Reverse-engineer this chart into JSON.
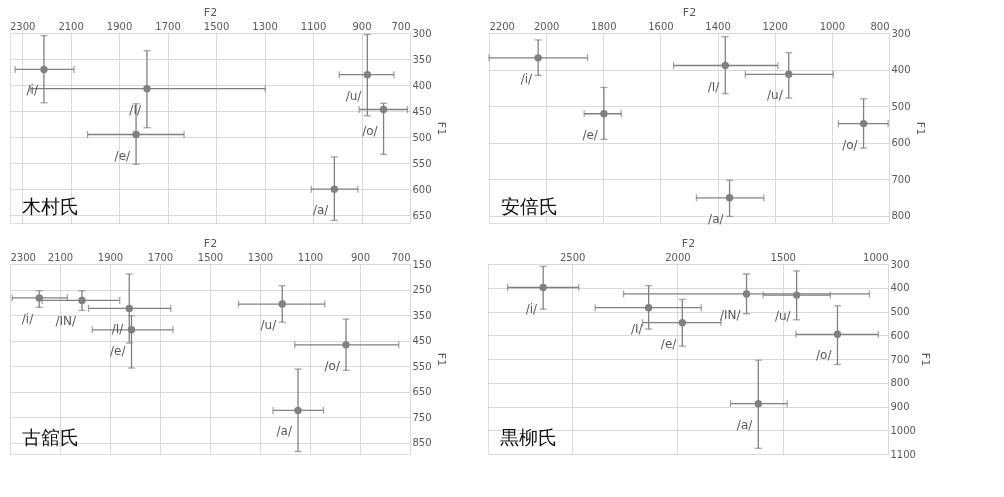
{
  "chart_data": [
    {
      "type": "scatter",
      "title": "木村氏",
      "xlabel": "F2",
      "ylabel": "F1",
      "xlim": [
        2350,
        700
      ],
      "ylim": [
        665,
        300
      ],
      "xticks": [
        2300,
        2100,
        1900,
        1700,
        1500,
        1300,
        1100,
        900,
        700
      ],
      "yticks": [
        300,
        350,
        400,
        450,
        500,
        550,
        600,
        650
      ],
      "grid": true,
      "legend": false,
      "marker": "circle",
      "series": [
        {
          "color": "#808080",
          "x": [
            2210,
            1785,
            1830,
            876,
            809,
            1012
          ],
          "values": [
            370,
            407,
            495,
            380,
            447,
            600
          ],
          "xerrors": [
            [
              2086,
              2329
            ],
            [
              1297,
              2267
            ],
            [
              1632,
              2030
            ],
            [
              766,
              992
            ],
            [
              710,
              910
            ],
            [
              915,
              1107
            ]
          ],
          "errors": [
            [
              305,
              434
            ],
            [
              334,
              482
            ],
            [
              436,
              552
            ],
            [
              303,
              459
            ],
            [
              435,
              533
            ],
            [
              538,
              660
            ]
          ]
        }
      ],
      "annotations": [
        {
          "text": "/i/",
          "x": 2210,
          "y": 370
        },
        {
          "text": "/I/",
          "x": 1785,
          "y": 407
        },
        {
          "text": "/e/",
          "x": 1830,
          "y": 495
        },
        {
          "text": "/u/",
          "x": 876,
          "y": 380
        },
        {
          "text": "/o/",
          "x": 809,
          "y": 447
        },
        {
          "text": "/a/",
          "x": 1012,
          "y": 600
        }
      ]
    },
    {
      "type": "scatter",
      "title": "安倍氏",
      "xlabel": "F2",
      "ylabel": "F1",
      "xlim": [
        2200,
        800
      ],
      "ylim": [
        820,
        300
      ],
      "xticks": [
        2200,
        2000,
        1800,
        1600,
        1400,
        1200,
        1000,
        800
      ],
      "yticks": [
        300,
        400,
        500,
        600,
        700,
        800
      ],
      "grid": true,
      "legend": false,
      "marker": "circle",
      "series": [
        {
          "color": "#808080",
          "x": [
            2028,
            1373,
            1151,
            1798,
            889,
            1358
          ],
          "values": [
            368,
            389,
            413,
            521,
            548,
            751
          ],
          "xerrors": [
            [
              1855,
              2200
            ],
            [
              1189,
              1554
            ],
            [
              995,
              1303
            ],
            [
              1737,
              1867
            ],
            [
              803,
              977
            ],
            [
              1238,
              1474
            ]
          ],
          "errors": [
            [
              319,
              416
            ],
            [
              310,
              466
            ],
            [
              354,
              478
            ],
            [
              449,
              591
            ],
            [
              480,
              615
            ],
            [
              703,
              802
            ]
          ]
        }
      ],
      "annotations": [
        {
          "text": "/i/",
          "x": 2028,
          "y": 368
        },
        {
          "text": "/I/",
          "x": 1373,
          "y": 389
        },
        {
          "text": "/u/",
          "x": 1151,
          "y": 413
        },
        {
          "text": "/e/",
          "x": 1798,
          "y": 521
        },
        {
          "text": "/o/",
          "x": 889,
          "y": 548
        },
        {
          "text": "/a/",
          "x": 1358,
          "y": 751
        }
      ]
    },
    {
      "type": "scatter",
      "title": "古舘氏",
      "xlabel": "F2",
      "ylabel": "F1",
      "xlim": [
        2300,
        700
      ],
      "ylim": [
        895,
        150
      ],
      "xticks": [
        2300,
        2100,
        1900,
        1700,
        1500,
        1300,
        1100,
        900,
        700
      ],
      "yticks": [
        150,
        250,
        350,
        450,
        550,
        650,
        750,
        850
      ],
      "grid": true,
      "legend": false,
      "marker": "circle",
      "series": [
        {
          "color": "#808080",
          "x": [
            2183,
            2012,
            1823,
            1814,
            1211,
            956,
            1148
          ],
          "values": [
            283,
            293,
            324,
            408,
            307,
            467,
            724
          ],
          "xerrors": [
            [
              2070,
              2291
            ],
            [
              1861,
              2171
            ],
            [
              1657,
              1986
            ],
            [
              1648,
              1971
            ],
            [
              1041,
              1386
            ],
            [
              745,
              1161
            ],
            [
              1046,
              1248
            ]
          ],
          "errors": [
            [
              255,
              320
            ],
            [
              255,
              332
            ],
            [
              189,
              460
            ],
            [
              353,
              558
            ],
            [
              235,
              378
            ],
            [
              366,
              567
            ],
            [
              562,
              885
            ]
          ]
        }
      ],
      "annotations": [
        {
          "text": "/i/",
          "x": 2183,
          "y": 283
        },
        {
          "text": "/IN/",
          "x": 2012,
          "y": 293
        },
        {
          "text": "/I/",
          "x": 1823,
          "y": 324
        },
        {
          "text": "/e/",
          "x": 1814,
          "y": 408
        },
        {
          "text": "/u/",
          "x": 1211,
          "y": 307
        },
        {
          "text": "/o/",
          "x": 956,
          "y": 467
        },
        {
          "text": "/a/",
          "x": 1148,
          "y": 724
        }
      ]
    },
    {
      "type": "scatter",
      "title": "黒柳氏",
      "xlabel": "F2",
      "ylabel": "F1",
      "xlim": [
        2900,
        1000
      ],
      "ylim": [
        1100,
        300
      ],
      "xticks": [
        2500,
        2000,
        1500,
        1000
      ],
      "yticks": [
        300,
        400,
        500,
        600,
        700,
        800,
        900,
        1000,
        1100
      ],
      "grid": true,
      "legend": false,
      "marker": "circle",
      "series": [
        {
          "color": "#808080",
          "x": [
            2638,
            2137,
            1977,
            1672,
            1434,
            1240,
            1616
          ],
          "values": [
            399,
            484,
            547,
            426,
            431,
            596,
            888
          ],
          "xerrors": [
            [
              2469,
              2807
            ],
            [
              1887,
              2391
            ],
            [
              1793,
              2166
            ],
            [
              1088,
              2256
            ],
            [
              1274,
              1593
            ],
            [
              1046,
              1437
            ],
            [
              1479,
              1748
            ]
          ],
          "errors": [
            [
              310,
              490
            ],
            [
              391,
              574
            ],
            [
              449,
              646
            ],
            [
              342,
              509
            ],
            [
              329,
              535
            ],
            [
              476,
              723
            ],
            [
              705,
              1076
            ]
          ]
        }
      ],
      "annotations": [
        {
          "text": "/i/",
          "x": 2638,
          "y": 399
        },
        {
          "text": "/I/",
          "x": 2137,
          "y": 484
        },
        {
          "text": "/e/",
          "x": 1977,
          "y": 547
        },
        {
          "text": "/IN/",
          "x": 1672,
          "y": 426
        },
        {
          "text": "/u/",
          "x": 1434,
          "y": 431
        },
        {
          "text": "/o/",
          "x": 1240,
          "y": 596
        },
        {
          "text": "/a/",
          "x": 1616,
          "y": 888
        }
      ]
    }
  ]
}
